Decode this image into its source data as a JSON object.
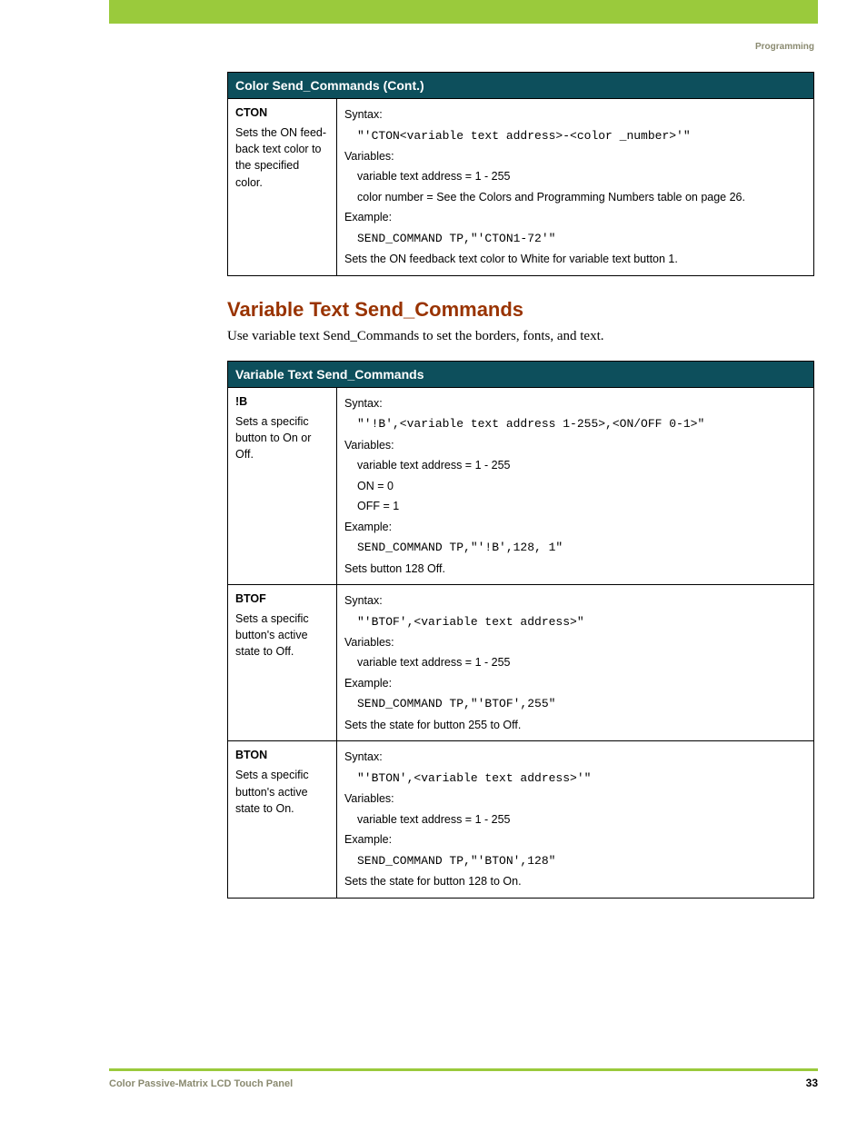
{
  "colors": {
    "accent_green": "#9aca3c",
    "header_teal": "#0d4f5c",
    "heading_red": "#993300",
    "muted_label": "#8a8a70",
    "border": "#000000",
    "white": "#ffffff"
  },
  "header": {
    "section_label": "Programming"
  },
  "table1": {
    "title": "Color Send_Commands (Cont.)",
    "rows": [
      {
        "name": "CTON",
        "desc": "Sets the ON feed-back text color to the specified color.",
        "syntax_label": "Syntax:",
        "syntax_code": "\"'CTON<variable text address>-<color _number>'\"",
        "variables_label": "Variables:",
        "var1": "variable text address = 1 - 255",
        "var2": "color number = See the Colors and Programming Numbers table on page 26.",
        "example_label": "Example:",
        "example_code": "SEND_COMMAND TP,\"'CTON1-72'\"",
        "example_note": "Sets the ON feedback text color to White for variable text button 1."
      }
    ]
  },
  "section": {
    "title": "Variable Text Send_Commands",
    "intro": "Use variable text Send_Commands to set the borders, fonts, and text."
  },
  "table2": {
    "title": "Variable Text Send_Commands",
    "rows": [
      {
        "name": "!B",
        "desc": "Sets a specific button to On or Off.",
        "syntax_label": "Syntax:",
        "syntax_code": "\"'!B',<variable text address 1-255>,<ON/OFF 0-1>\"",
        "variables_label": "Variables:",
        "var1": "variable text address = 1 - 255",
        "var2": "ON = 0",
        "var3": "OFF = 1",
        "example_label": "Example:",
        "example_code": "SEND_COMMAND TP,\"'!B',128, 1\"",
        "example_note": "Sets button 128 Off."
      },
      {
        "name": "BTOF",
        "desc": "Sets a specific button's active state to Off.",
        "syntax_label": "Syntax:",
        "syntax_code": "\"'BTOF',<variable text address>\"",
        "variables_label": "Variables:",
        "var1": "variable text address = 1 - 255",
        "example_label": "Example:",
        "example_code": "SEND_COMMAND TP,\"'BTOF',255\"",
        "example_note": "Sets the state for button 255 to Off."
      },
      {
        "name": "BTON",
        "desc": "Sets a specific button's active state to On.",
        "syntax_label": "Syntax:",
        "syntax_code": "\"'BTON',<variable text address>'\"",
        "variables_label": "Variables:",
        "var1": "variable text address = 1 - 255",
        "example_label": "Example:",
        "example_code": "SEND_COMMAND TP,\"'BTON',128\"",
        "example_note": "Sets the state for button 128 to On."
      }
    ]
  },
  "footer": {
    "left": "Color Passive-Matrix LCD Touch Panel",
    "page": "33"
  }
}
